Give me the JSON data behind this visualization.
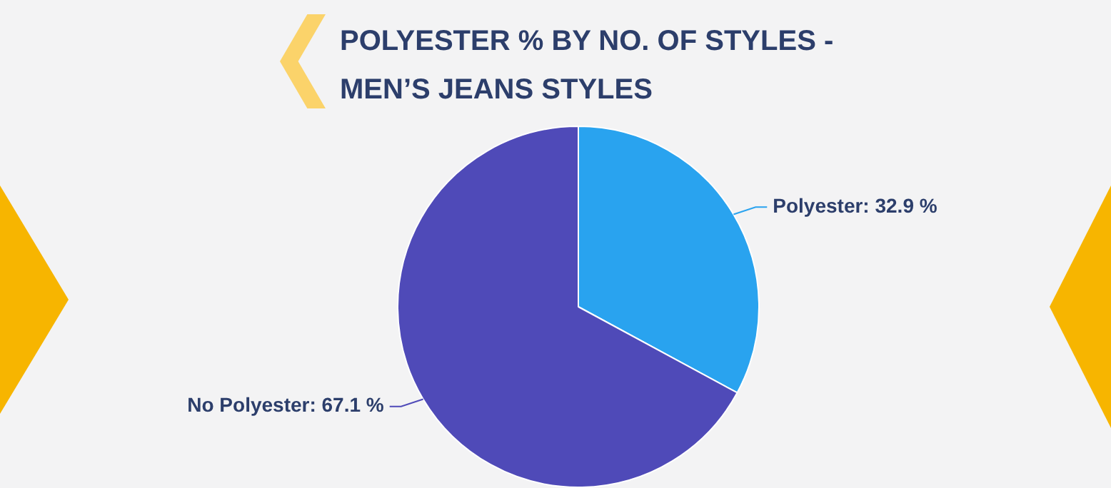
{
  "chart_data": {
    "type": "pie",
    "title": "POLYESTER % BY NO. OF STYLES - MEN’S JEANS STYLES",
    "categories": [
      "Polyester",
      "No Polyester"
    ],
    "values": [
      32.9,
      67.1
    ],
    "colors": [
      "#29a3ef",
      "#4f4ab8"
    ],
    "value_labels": [
      ": 32.9 %",
      ": 67.1 %"
    ],
    "legend": false
  }
}
